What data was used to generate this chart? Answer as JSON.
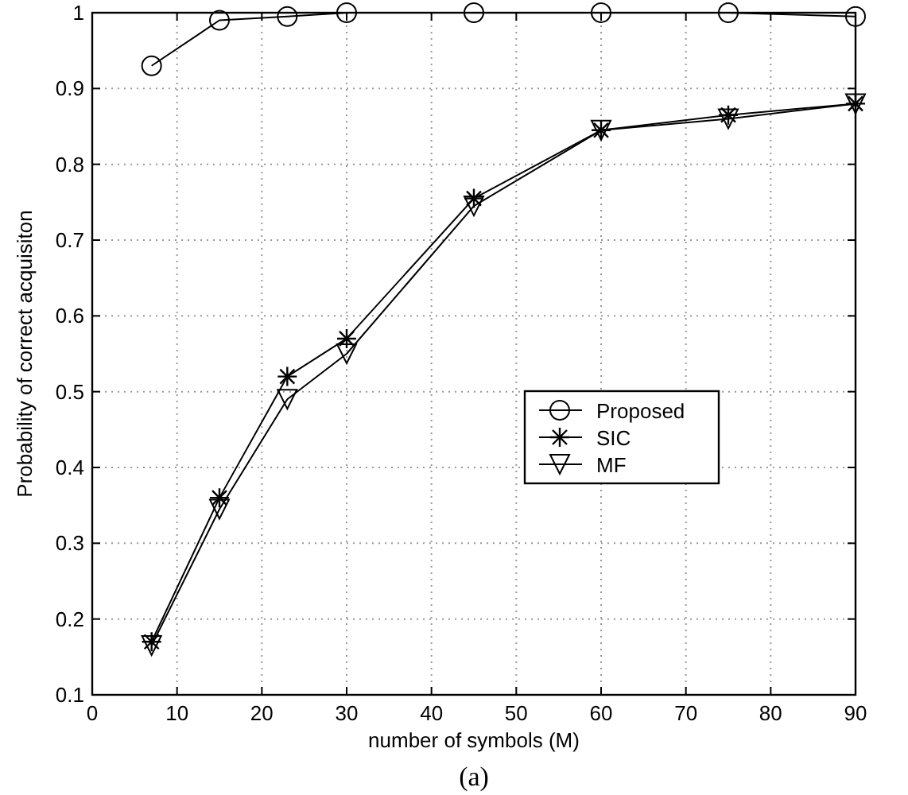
{
  "chart_data": {
    "type": "line",
    "xlabel": "number of symbols (M)",
    "ylabel": "Probability of correct acquisiton",
    "x": [
      7,
      15,
      23,
      30,
      45,
      60,
      75,
      90
    ],
    "series": [
      {
        "name": "Proposed",
        "color": "#000000",
        "marker": "circle",
        "values": [
          0.93,
          0.99,
          0.995,
          1,
          1,
          1,
          1,
          0.995
        ]
      },
      {
        "name": "SIC",
        "color": "#000000",
        "marker": "cross",
        "values": [
          0.17,
          0.36,
          0.52,
          0.57,
          0.755,
          0.845,
          0.865,
          0.88
        ]
      },
      {
        "name": "MF",
        "color": "#000000",
        "marker": "triangle",
        "values": [
          0.165,
          0.345,
          0.49,
          0.55,
          0.745,
          0.845,
          0.86,
          0.88
        ]
      }
    ],
    "xlim": [
      0,
      90
    ],
    "xticks": [
      0,
      10,
      20,
      30,
      40,
      50,
      60,
      70,
      80,
      90
    ],
    "ylim": [
      0.1,
      1
    ],
    "yticks": [
      0.1,
      0.2,
      0.3,
      0.4,
      0.5,
      0.6,
      0.7,
      0.8,
      0.9,
      1
    ],
    "grid": true,
    "legend": "right",
    "line_style": "solid",
    "annotations": [
      "(a)"
    ]
  }
}
